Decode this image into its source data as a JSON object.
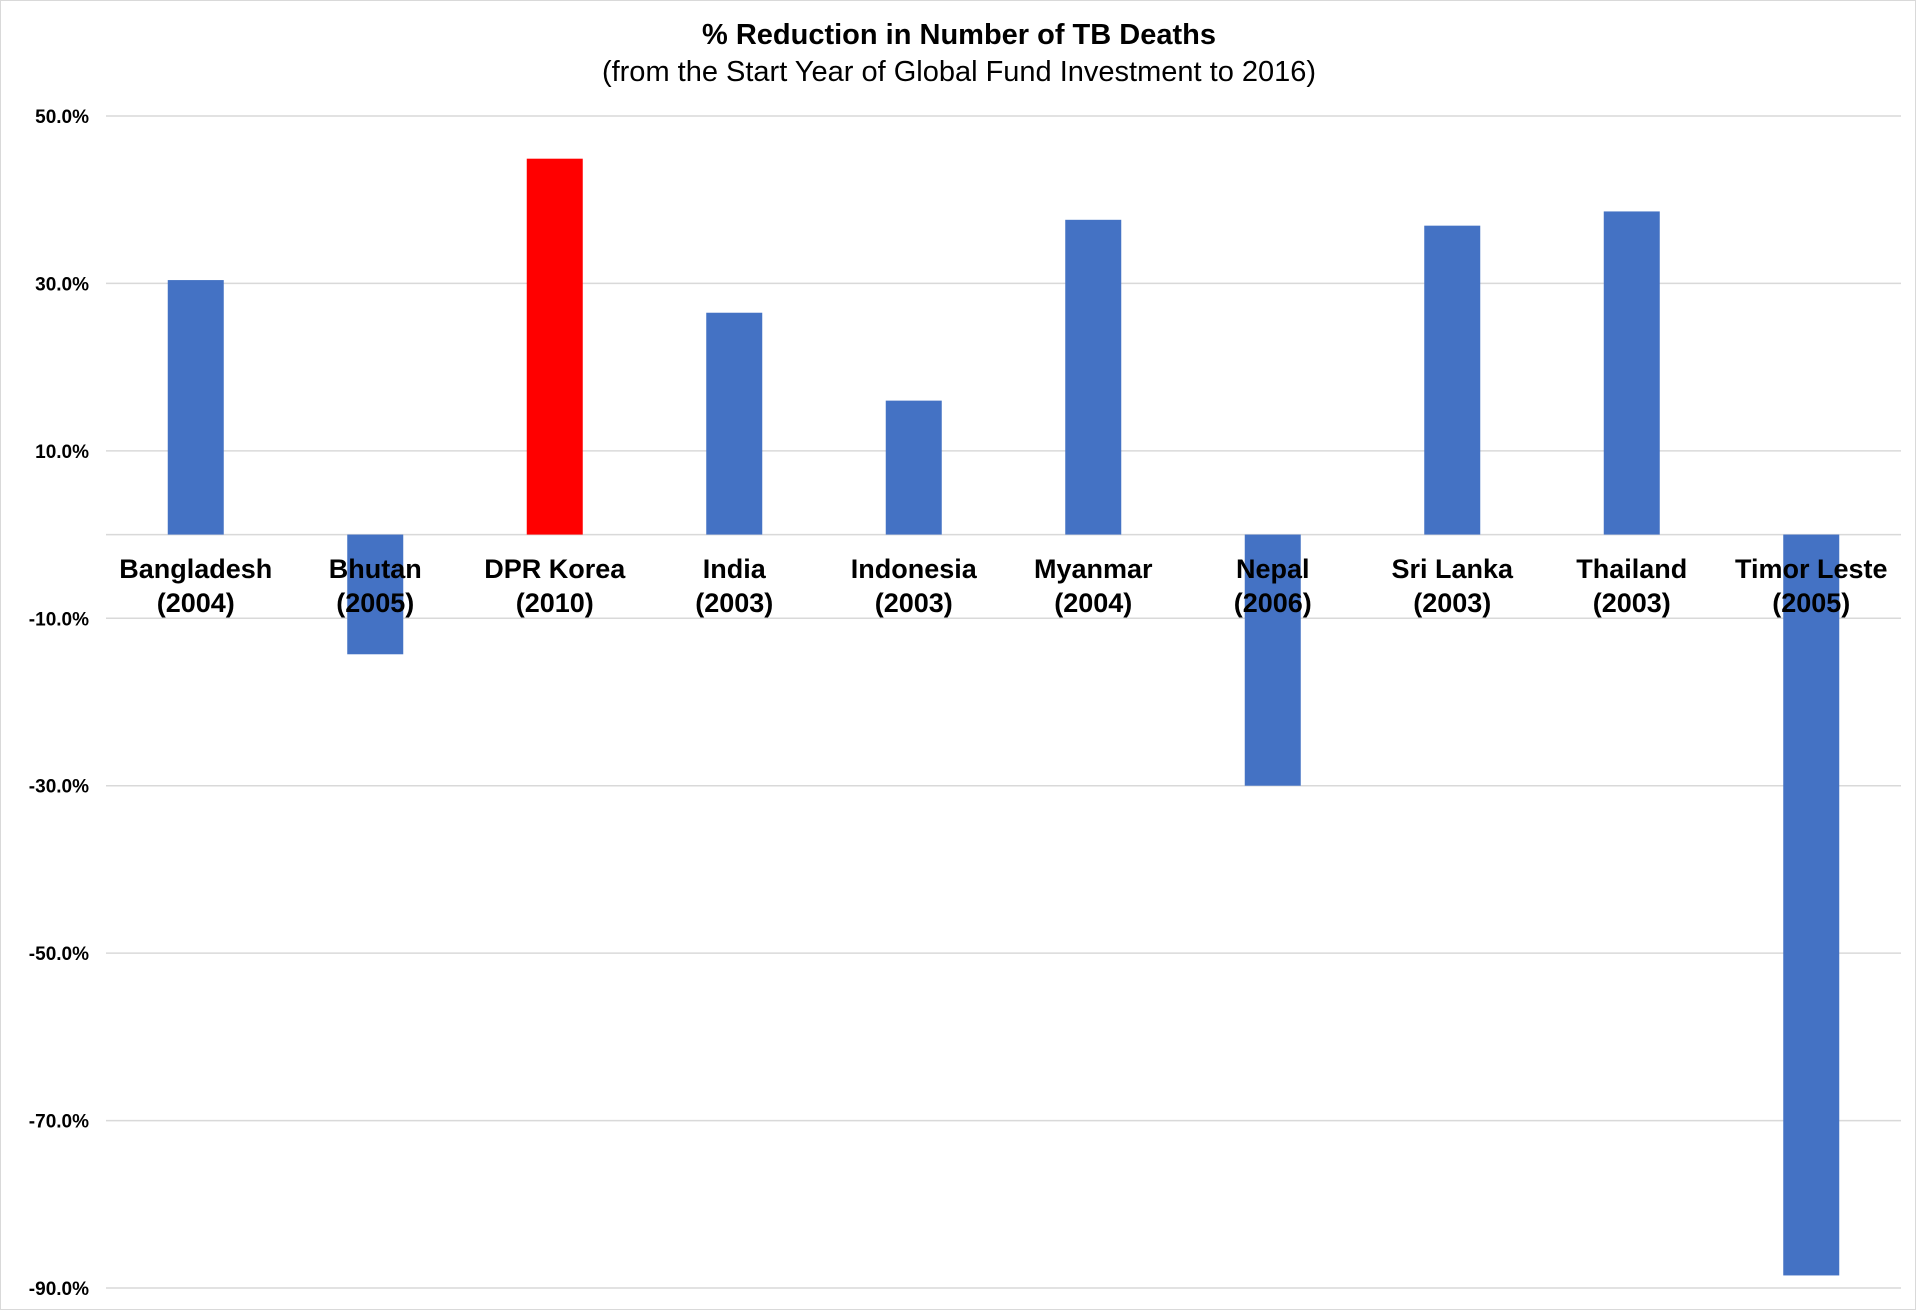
{
  "chart_data": {
    "type": "bar",
    "title": "% Reduction in Number of TB Deaths",
    "subtitle": "(from the Start Year of Global Fund Investment to 2016)",
    "xlabel": "",
    "ylabel": "",
    "ylim": [
      -90,
      50
    ],
    "y_ticks": [
      50,
      30,
      10,
      -10,
      -30,
      -50,
      -70,
      -90
    ],
    "y_tick_labels": [
      "50.0%",
      "30.0%",
      "10.0%",
      "-10.0%",
      "-30.0%",
      "-50.0%",
      "-70.0%",
      "-90.0%"
    ],
    "grid": true,
    "categories": [
      [
        "Bangladesh",
        "(2004)"
      ],
      [
        "Bhutan",
        "(2005)"
      ],
      [
        "DPR Korea",
        "(2010)"
      ],
      [
        "India",
        "(2003)"
      ],
      [
        "Indonesia",
        "(2003)"
      ],
      [
        "Myanmar",
        "(2004)"
      ],
      [
        "Nepal",
        "(2006)"
      ],
      [
        "Sri Lanka",
        "(2003)"
      ],
      [
        "Thailand",
        "(2003)"
      ],
      [
        "Timor Leste",
        "(2005)"
      ]
    ],
    "values": [
      30.4,
      -14.3,
      44.9,
      26.5,
      16.0,
      37.6,
      -30.0,
      36.9,
      38.6,
      -88.5
    ],
    "colors": [
      "#4472c4",
      "#4472c4",
      "#ff0000",
      "#4472c4",
      "#4472c4",
      "#4472c4",
      "#4472c4",
      "#4472c4",
      "#4472c4",
      "#4472c4"
    ],
    "gridline_color": "#d9d9d9"
  }
}
